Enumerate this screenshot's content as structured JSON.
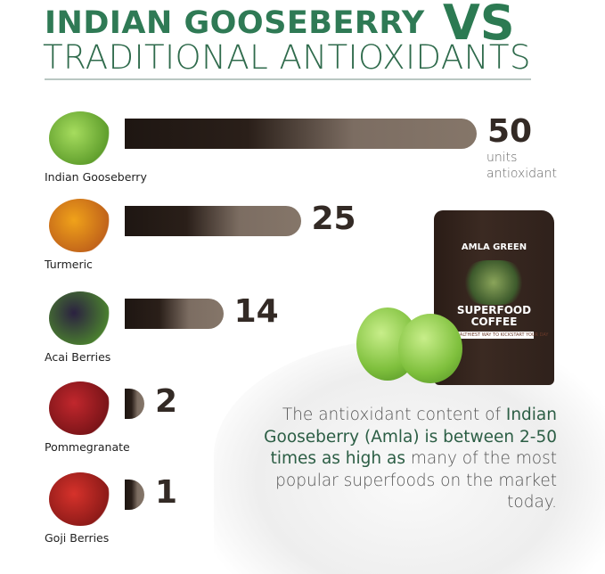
{
  "title": {
    "line1": "INDIAN GOOSEBERRY",
    "vs": "VS",
    "line2": "TRADITIONAL ANTIOXIDANTS"
  },
  "chart_data": {
    "type": "bar",
    "orientation": "horizontal",
    "categories": [
      "Indian Gooseberry",
      "Turmeric",
      "Acai Berries",
      "Pommegranate",
      "Goji Berries"
    ],
    "values": [
      50,
      25,
      14,
      2,
      1
    ],
    "unit_label": "units antioxidant",
    "bar_color": "#2a1f19",
    "xlim": [
      0,
      50
    ]
  },
  "product": {
    "brand": "AMLA GREEN",
    "name_line1": "SUPERFOOD",
    "name_line2": "COFFEE",
    "tagline": "HEALTHIEST WAY TO KICKSTART YOUR DAY"
  },
  "description": {
    "part1": "The antioxidant content of ",
    "bold": "Indian Gooseberry (Amla) is between 2-50 times as high as",
    "part2": " many of the most popular superfoods on the market today."
  },
  "colors": {
    "green": "#2f7a55",
    "dark_text": "#332a25"
  }
}
